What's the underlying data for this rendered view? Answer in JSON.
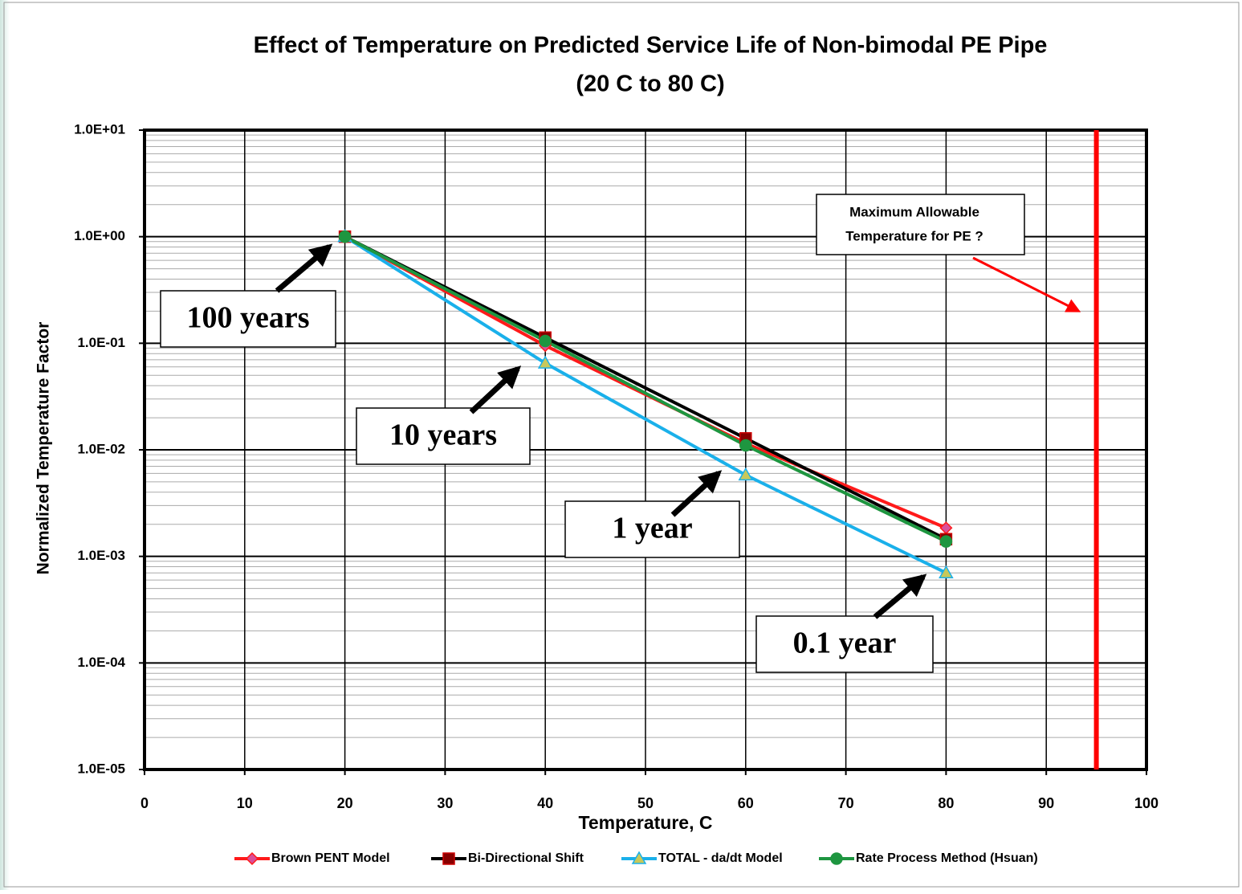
{
  "chart_data": {
    "type": "line",
    "title": "Effect of Temperature on Predicted Service Life of Non-bimodal PE Pipe",
    "subtitle": "(20 C to 80 C)",
    "x_label": "Temperature, C",
    "y_label": "Normalized Temperature Factor",
    "x": [
      20,
      40,
      60,
      80
    ],
    "series": [
      {
        "name": "Brown PENT  Model",
        "color": "#ff1a1a",
        "marker": "diamond",
        "values": [
          1.0,
          0.095,
          0.0115,
          0.00185
        ]
      },
      {
        "name": "Bi-Directional Shift",
        "color": "#000000",
        "marker": "square",
        "values": [
          1.0,
          0.113,
          0.0128,
          0.00145
        ]
      },
      {
        "name": "TOTAL - da/dt Model",
        "color": "#1ab0ea",
        "marker": "triangle",
        "values": [
          1.0,
          0.065,
          0.0058,
          0.0007
        ]
      },
      {
        "name": "Rate Process Method (Hsuan)",
        "color": "#1e9640",
        "marker": "circle",
        "values": [
          1.0,
          0.105,
          0.011,
          0.00138
        ]
      }
    ],
    "xlim": [
      0,
      100
    ],
    "xticks": [
      0,
      10,
      20,
      30,
      40,
      50,
      60,
      70,
      80,
      90,
      100
    ],
    "ylim": [
      1e-05,
      10
    ],
    "yticks": [
      {
        "value": 10,
        "label": "1.0E+01"
      },
      {
        "value": 1,
        "label": "1.0E+00"
      },
      {
        "value": 0.1,
        "label": "1.0E-01"
      },
      {
        "value": 0.01,
        "label": "1.0E-02"
      },
      {
        "value": 0.001,
        "label": "1.0E-03"
      },
      {
        "value": 0.0001,
        "label": "1.0E-04"
      },
      {
        "value": 1e-05,
        "label": "1.0E-05"
      }
    ],
    "log_y": true,
    "grid": true,
    "legend": "bottom",
    "annotations": [
      "100 years",
      "10 years",
      "1 year",
      "0.1 year"
    ],
    "limit_line": {
      "x": 95,
      "color": "#ff0000",
      "text": [
        "Maximum  Allowable",
        "Temperature for PE ?"
      ]
    }
  }
}
